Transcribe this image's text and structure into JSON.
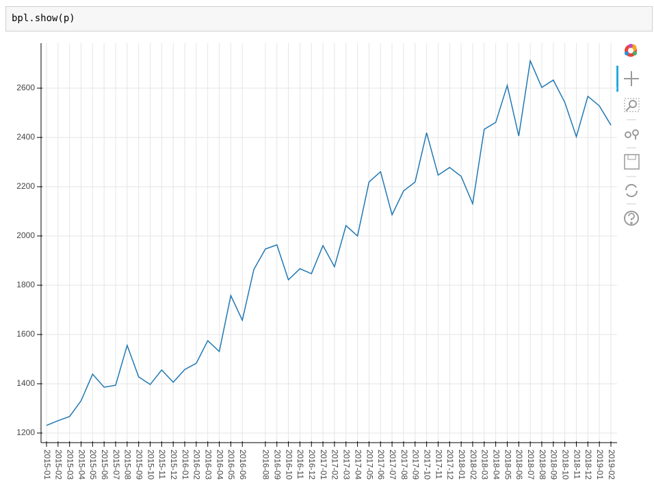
{
  "code_cell": {
    "code": "bpl.show(p)"
  },
  "chart_data": {
    "type": "line",
    "categories": [
      "2015-01",
      "2015-02",
      "2015-03",
      "2015-04",
      "2015-05",
      "2015-06",
      "2015-07",
      "2015-08",
      "2015-09",
      "2015-10",
      "2015-11",
      "2015-12",
      "2016-01",
      "2016-02",
      "2016-03",
      "2016-04",
      "2016-05",
      "2016-06",
      null,
      "2016-08",
      "2016-09",
      "2016-10",
      "2016-11",
      "2016-12",
      "2017-01",
      "2017-02",
      "2017-03",
      "2017-04",
      "2017-05",
      "2017-06",
      "2017-07",
      "2017-08",
      "2017-09",
      "2017-10",
      "2017-11",
      "2017-12",
      "2018-01",
      "2018-02",
      "2018-03",
      "2018-04",
      "2018-05",
      "2018-06",
      "2018-07",
      "2018-08",
      "2018-09",
      "2018-10",
      "2018-11",
      "2018-12",
      "2019-01",
      "2019-02"
    ],
    "values": [
      1231,
      1250,
      1267,
      1331,
      1439,
      1386,
      1394,
      1556,
      1428,
      1397,
      1456,
      1406,
      1458,
      1483,
      1575,
      1531,
      1758,
      1658,
      1864,
      1947,
      1964,
      1822,
      1867,
      1847,
      1961,
      1875,
      2042,
      2000,
      2219,
      2261,
      2086,
      2183,
      2219,
      2419,
      2247,
      2278,
      2242,
      2131,
      2433,
      2461,
      2611,
      2406,
      2711,
      2603,
      2633,
      2542,
      2403,
      2567,
      2528,
      2450
    ],
    "color": "#1f77b4",
    "ylim": [
      1161,
      2783
    ],
    "yticks": [
      1200,
      1400,
      1600,
      1800,
      2000,
      2200,
      2400,
      2600
    ],
    "grid": true
  }
}
